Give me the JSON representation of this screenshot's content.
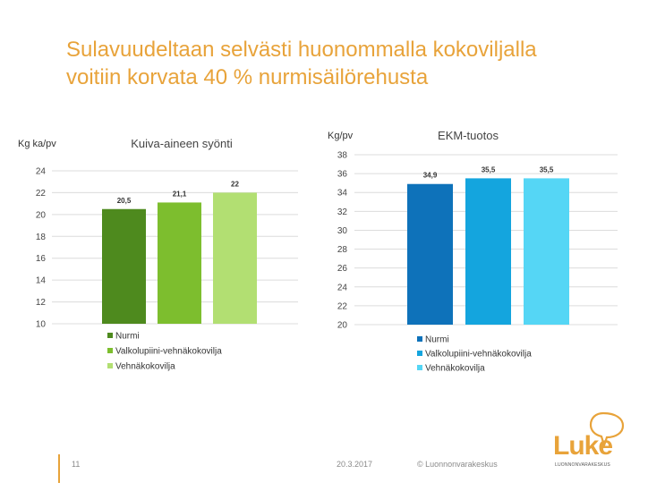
{
  "slide": {
    "title_line1": "Sulavuudeltaan selvästi huonommalla kokoviljalla",
    "title_line2": "voitiin korvata 40 % nurmisäilörehusta"
  },
  "footer": {
    "page_number": "11",
    "date": "20.3.2017",
    "copyright": "© Luonnonvarakeskus"
  },
  "logo": {
    "word": "Luke",
    "subtitle": "LUONNONVARAKESKUS"
  },
  "chart_data": [
    {
      "type": "bar",
      "title": "Kuiva-aineen syönti",
      "ylabel": "Kg ka/pv",
      "xlabel": "",
      "ylim": [
        10,
        24
      ],
      "yticks": [
        10,
        12,
        14,
        16,
        18,
        20,
        22,
        24
      ],
      "grid": true,
      "legend_position": "bottom",
      "series": [
        {
          "name": "Nurmi",
          "values": [
            20.5
          ],
          "label": "20,5",
          "color": "#4E8A1E"
        },
        {
          "name": "Valkolupiini-vehnäkokovilja",
          "values": [
            21.1
          ],
          "label": "21,1",
          "color": "#7DBE2E"
        },
        {
          "name": "Vehnäkokovilja",
          "values": [
            22
          ],
          "label": "22",
          "color": "#B2DF72"
        }
      ]
    },
    {
      "type": "bar",
      "title": "EKM-tuotos",
      "ylabel": "Kg/pv",
      "xlabel": "",
      "ylim": [
        20,
        38
      ],
      "yticks": [
        20,
        22,
        24,
        26,
        28,
        30,
        32,
        34,
        36,
        38
      ],
      "grid": true,
      "legend_position": "bottom",
      "series": [
        {
          "name": "Nurmi",
          "values": [
            34.9
          ],
          "label": "34,9",
          "color": "#0E72BA"
        },
        {
          "name": "Valkolupiini-vehnäkokovilja",
          "values": [
            35.5
          ],
          "label": "35,5",
          "color": "#14A5DE"
        },
        {
          "name": "Vehnäkokovilja",
          "values": [
            35.5
          ],
          "label": "35,5",
          "color": "#55D6F5"
        }
      ]
    }
  ]
}
